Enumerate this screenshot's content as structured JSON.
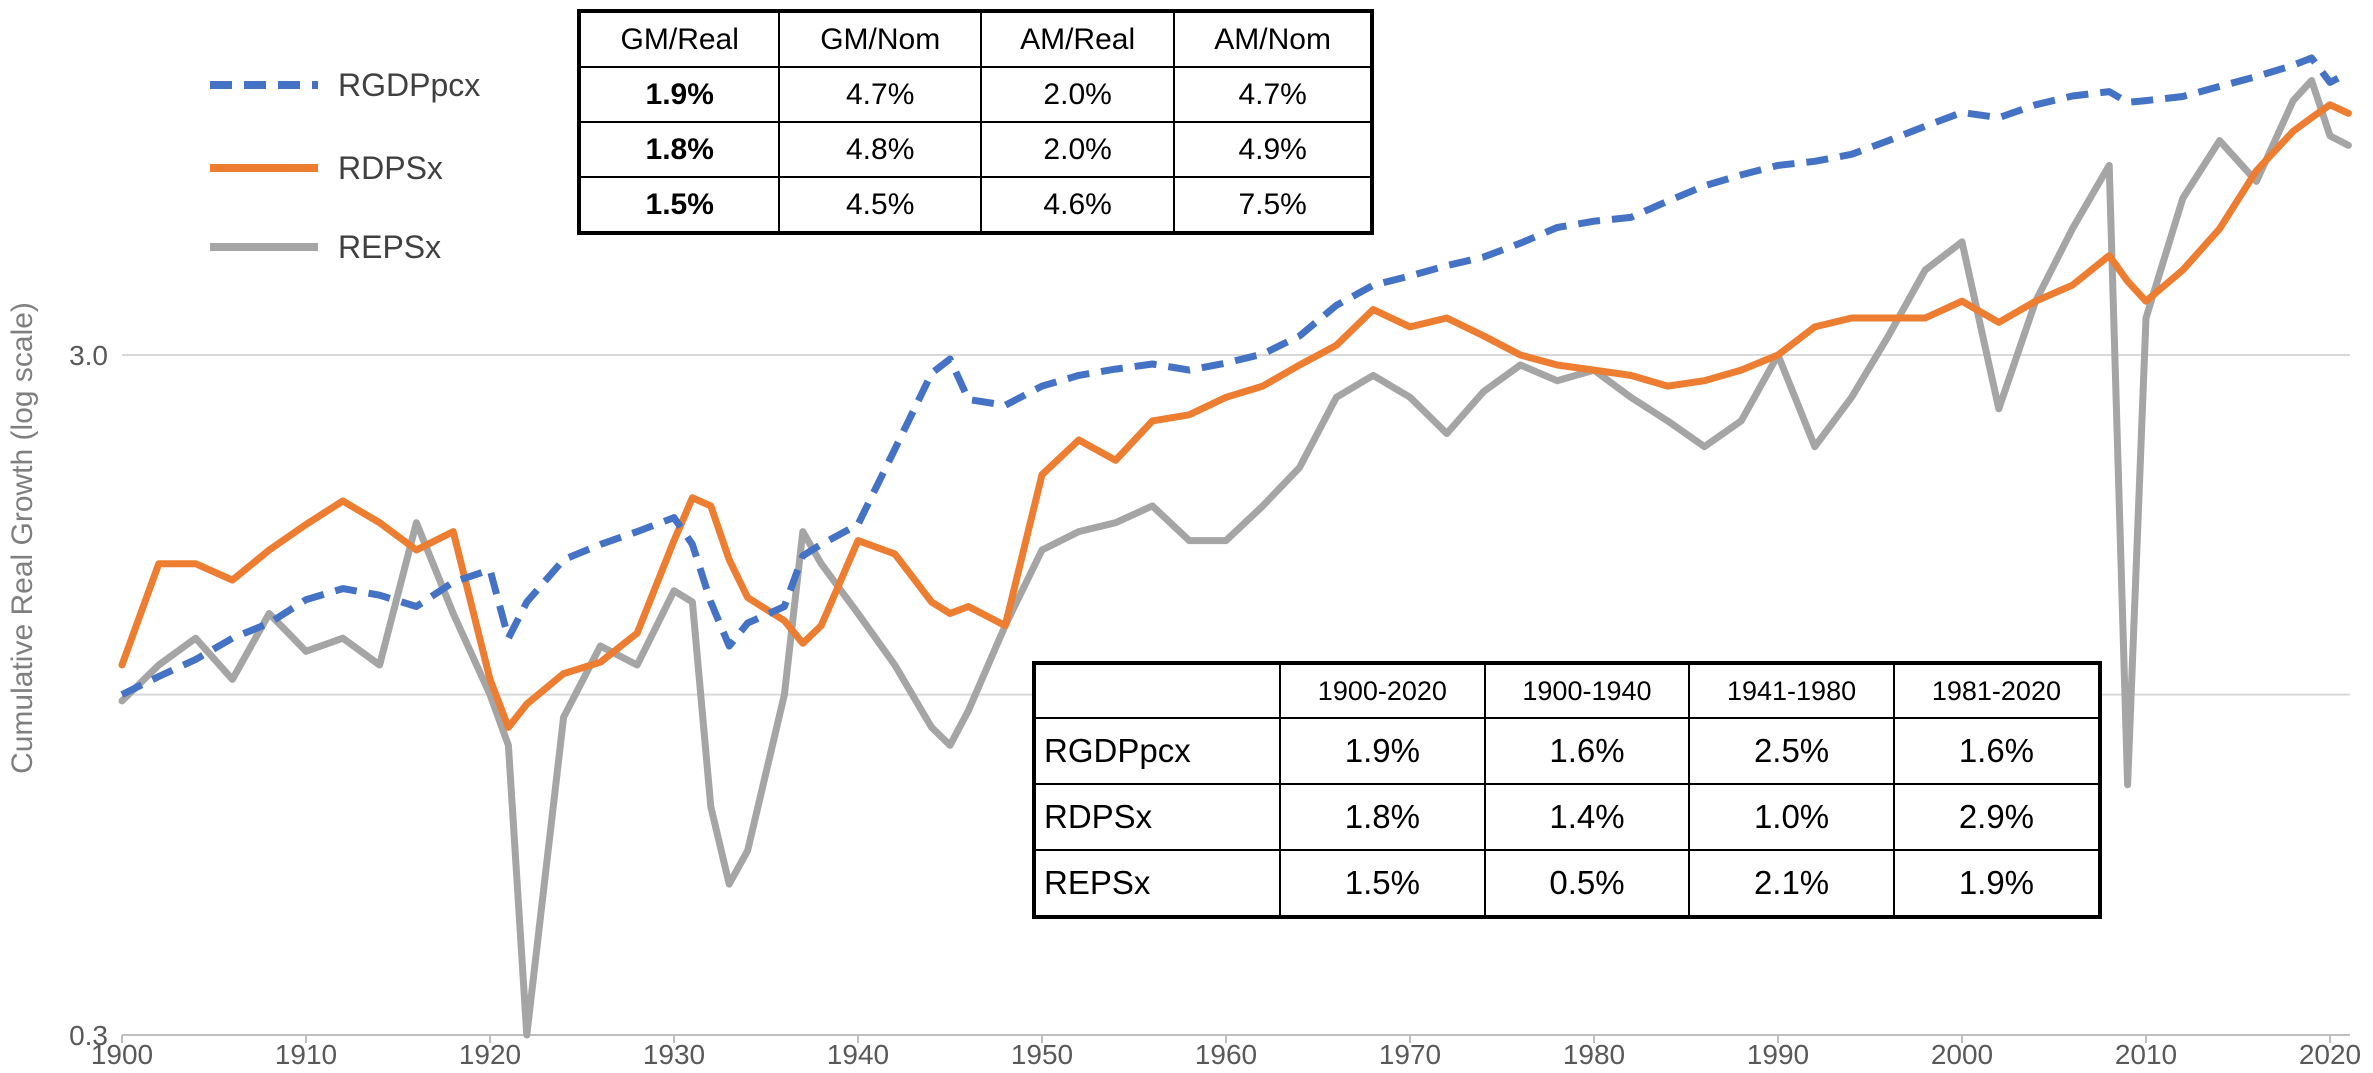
{
  "chart_data": {
    "type": "line",
    "title": "",
    "xlabel": "",
    "ylabel": "Cumulative Real Growth (log scale)",
    "y_scale": "log",
    "xlim": [
      1900,
      2021
    ],
    "ylim": [
      0.3,
      9
    ],
    "x_ticks": [
      "1900",
      "1910",
      "1920",
      "1930",
      "1940",
      "1950",
      "1960",
      "1970",
      "1980",
      "1990",
      "2000",
      "2010",
      "2020"
    ],
    "y_ticks": [
      "0.3",
      "3.0"
    ],
    "y_tick_values": [
      0.3,
      3.0
    ],
    "gridlines_y": [
      0.3,
      0.95,
      3.0
    ],
    "grid": "horizontal",
    "legend": "top-left",
    "x": [
      1900,
      1902,
      1904,
      1906,
      1908,
      1910,
      1912,
      1914,
      1916,
      1918,
      1920,
      1921,
      1922,
      1924,
      1926,
      1928,
      1930,
      1931,
      1932,
      1933,
      1934,
      1936,
      1937,
      1938,
      1940,
      1942,
      1944,
      1945,
      1946,
      1948,
      1950,
      1952,
      1954,
      1956,
      1958,
      1960,
      1962,
      1964,
      1966,
      1968,
      1970,
      1972,
      1974,
      1976,
      1978,
      1980,
      1982,
      1984,
      1986,
      1988,
      1990,
      1992,
      1994,
      1996,
      1998,
      2000,
      2002,
      2004,
      2006,
      2008,
      2009,
      2010,
      2012,
      2014,
      2016,
      2018,
      2019,
      2020,
      2021
    ],
    "series": [
      {
        "name": "RGDPpcx",
        "color": "#4472c4",
        "style": "dashed",
        "values": [
          0.95,
          1.01,
          1.07,
          1.15,
          1.21,
          1.31,
          1.36,
          1.33,
          1.28,
          1.39,
          1.45,
          1.15,
          1.3,
          1.5,
          1.58,
          1.65,
          1.73,
          1.58,
          1.3,
          1.12,
          1.21,
          1.28,
          1.52,
          1.58,
          1.69,
          2.18,
          2.82,
          2.96,
          2.58,
          2.53,
          2.7,
          2.8,
          2.86,
          2.91,
          2.85,
          2.92,
          3.01,
          3.2,
          3.55,
          3.8,
          3.92,
          4.06,
          4.18,
          4.38,
          4.62,
          4.72,
          4.78,
          5.05,
          5.32,
          5.52,
          5.7,
          5.78,
          5.92,
          6.2,
          6.51,
          6.82,
          6.7,
          7.0,
          7.21,
          7.32,
          7.06,
          7.1,
          7.2,
          7.45,
          7.7,
          8.0,
          8.2,
          7.55,
          7.8
        ]
      },
      {
        "name": "RDPSx",
        "color": "#ed7d31",
        "style": "solid",
        "values": [
          1.05,
          1.48,
          1.48,
          1.4,
          1.55,
          1.69,
          1.83,
          1.7,
          1.55,
          1.65,
          1.0,
          0.85,
          0.92,
          1.02,
          1.06,
          1.17,
          1.6,
          1.85,
          1.8,
          1.5,
          1.32,
          1.22,
          1.13,
          1.2,
          1.6,
          1.53,
          1.3,
          1.25,
          1.28,
          1.2,
          2.0,
          2.25,
          2.1,
          2.4,
          2.45,
          2.6,
          2.7,
          2.9,
          3.1,
          3.5,
          3.3,
          3.4,
          3.2,
          3.0,
          2.9,
          2.85,
          2.8,
          2.7,
          2.75,
          2.85,
          3.0,
          3.3,
          3.4,
          3.4,
          3.4,
          3.6,
          3.35,
          3.6,
          3.8,
          4.2,
          3.85,
          3.6,
          4.0,
          4.6,
          5.6,
          6.4,
          6.7,
          7.0,
          6.8
        ]
      },
      {
        "name": "REPSx",
        "color": "#a5a5a5",
        "style": "solid",
        "values": [
          0.93,
          1.05,
          1.15,
          1.0,
          1.25,
          1.1,
          1.15,
          1.05,
          1.7,
          1.25,
          0.95,
          0.8,
          0.3,
          0.88,
          1.12,
          1.05,
          1.35,
          1.3,
          0.65,
          0.5,
          0.56,
          0.95,
          1.65,
          1.48,
          1.25,
          1.05,
          0.85,
          0.8,
          0.9,
          1.2,
          1.55,
          1.65,
          1.7,
          1.8,
          1.6,
          1.6,
          1.8,
          2.05,
          2.6,
          2.8,
          2.6,
          2.3,
          2.65,
          2.9,
          2.75,
          2.85,
          2.6,
          2.4,
          2.2,
          2.4,
          3.0,
          2.2,
          2.6,
          3.2,
          4.0,
          4.4,
          2.5,
          3.6,
          4.6,
          5.7,
          0.7,
          3.4,
          5.1,
          6.2,
          5.4,
          7.1,
          7.6,
          6.3,
          6.1
        ]
      }
    ]
  },
  "table_top": {
    "headers": [
      "GM/Real",
      "GM/Nom",
      "AM/Real",
      "AM/Nom"
    ],
    "rows": [
      [
        "1.9%",
        "4.7%",
        "2.0%",
        "4.7%"
      ],
      [
        "1.8%",
        "4.8%",
        "2.0%",
        "4.9%"
      ],
      [
        "1.5%",
        "4.5%",
        "4.6%",
        "7.5%"
      ]
    ]
  },
  "table_bottom": {
    "headers": [
      "1900-2020",
      "1900-1940",
      "1941-1980",
      "1981-2020"
    ],
    "rows": [
      {
        "label": "RGDPpcx",
        "values": [
          "1.9%",
          "1.6%",
          "2.5%",
          "1.6%"
        ]
      },
      {
        "label": "RDPSx",
        "values": [
          "1.8%",
          "1.4%",
          "1.0%",
          "2.9%"
        ]
      },
      {
        "label": "REPSx",
        "values": [
          "1.5%",
          "0.5%",
          "2.1%",
          "1.9%"
        ]
      }
    ]
  }
}
